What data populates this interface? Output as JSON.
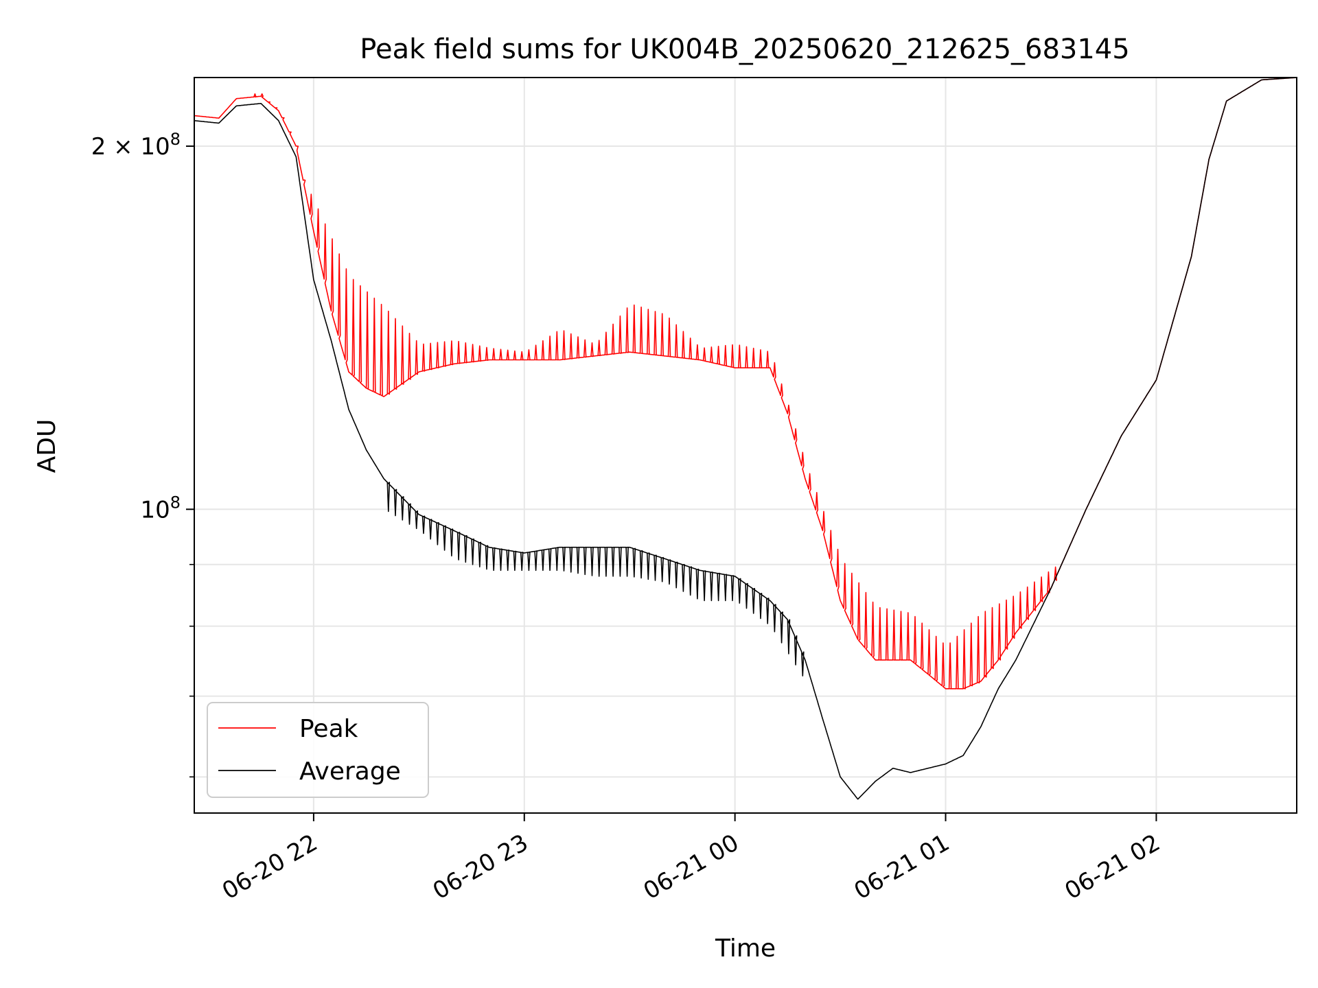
{
  "chart_data": {
    "type": "line",
    "title": "Peak field sums for UK004B_20250620_212625_683145",
    "xlabel": "Time",
    "ylabel": "ADU",
    "yscale": "log",
    "grid": true,
    "legend_position": "lower-left",
    "xlim": [
      "2025-06-20 21:26",
      "2025-06-21 02:40"
    ],
    "ylim": [
      56000000,
      228000000
    ],
    "x_ticks": [
      {
        "value": "2025-06-20 22:00",
        "label": "06-20 22"
      },
      {
        "value": "2025-06-20 23:00",
        "label": "06-20 23"
      },
      {
        "value": "2025-06-21 00:00",
        "label": "06-21 00"
      },
      {
        "value": "2025-06-21 01:00",
        "label": "06-21 01"
      },
      {
        "value": "2025-06-21 02:00",
        "label": "06-21 02"
      }
    ],
    "y_major_ticks": [
      {
        "value": 100000000,
        "label_base": "10",
        "label_exp": "8",
        "label_coef": ""
      },
      {
        "value": 200000000,
        "label_base": "10",
        "label_exp": "8",
        "label_coef": "2 × "
      }
    ],
    "y_minor_ticks": [
      60000000,
      70000000,
      80000000,
      90000000
    ],
    "series": [
      {
        "name": "Peak",
        "color": "#ff0000",
        "x": [
          "2025-06-20 21:26",
          "2025-06-20 21:33",
          "2025-06-20 21:38",
          "2025-06-20 21:45",
          "2025-06-20 21:50",
          "2025-06-20 21:55",
          "2025-06-20 22:00",
          "2025-06-20 22:05",
          "2025-06-20 22:10",
          "2025-06-20 22:15",
          "2025-06-20 22:20",
          "2025-06-20 22:30",
          "2025-06-20 22:40",
          "2025-06-20 22:50",
          "2025-06-20 23:00",
          "2025-06-20 23:10",
          "2025-06-20 23:20",
          "2025-06-20 23:30",
          "2025-06-20 23:40",
          "2025-06-20 23:50",
          "2025-06-21 00:00",
          "2025-06-21 00:10",
          "2025-06-21 00:15",
          "2025-06-21 00:20",
          "2025-06-21 00:25",
          "2025-06-21 00:30",
          "2025-06-21 00:35",
          "2025-06-21 00:40",
          "2025-06-21 00:45",
          "2025-06-21 00:50",
          "2025-06-21 00:55",
          "2025-06-21 01:00",
          "2025-06-21 01:05",
          "2025-06-21 01:10",
          "2025-06-21 01:15",
          "2025-06-21 01:20",
          "2025-06-21 01:30",
          "2025-06-21 01:40",
          "2025-06-21 01:50",
          "2025-06-21 02:00",
          "2025-06-21 02:10",
          "2025-06-21 02:15",
          "2025-06-21 02:20",
          "2025-06-21 02:30",
          "2025-06-21 02:40"
        ],
        "y": [
          212000000,
          211000000,
          219000000,
          220000000,
          214000000,
          200000000,
          170000000,
          146000000,
          130000000,
          126000000,
          124000000,
          130000000,
          132000000,
          133000000,
          133000000,
          133000000,
          134000000,
          135000000,
          134000000,
          133000000,
          131000000,
          131000000,
          120000000,
          106000000,
          96000000,
          84000000,
          78000000,
          75000000,
          75000000,
          75000000,
          73000000,
          71000000,
          71000000,
          72000000,
          75000000,
          79000000,
          86000000,
          100000000,
          115000000,
          128000000,
          162000000,
          195000000,
          218000000,
          227000000,
          228000000
        ]
      },
      {
        "name": "Average",
        "color": "#000000",
        "x": [
          "2025-06-20 21:26",
          "2025-06-20 21:33",
          "2025-06-20 21:38",
          "2025-06-20 21:45",
          "2025-06-20 21:50",
          "2025-06-20 21:55",
          "2025-06-20 22:00",
          "2025-06-20 22:05",
          "2025-06-20 22:10",
          "2025-06-20 22:15",
          "2025-06-20 22:20",
          "2025-06-20 22:30",
          "2025-06-20 22:40",
          "2025-06-20 22:50",
          "2025-06-20 23:00",
          "2025-06-20 23:10",
          "2025-06-20 23:20",
          "2025-06-20 23:30",
          "2025-06-20 23:40",
          "2025-06-20 23:50",
          "2025-06-21 00:00",
          "2025-06-21 00:10",
          "2025-06-21 00:15",
          "2025-06-21 00:20",
          "2025-06-21 00:25",
          "2025-06-21 00:30",
          "2025-06-21 00:35",
          "2025-06-21 00:40",
          "2025-06-21 00:45",
          "2025-06-21 00:50",
          "2025-06-21 00:55",
          "2025-06-21 01:00",
          "2025-06-21 01:05",
          "2025-06-21 01:10",
          "2025-06-21 01:15",
          "2025-06-21 01:20",
          "2025-06-21 01:30",
          "2025-06-21 01:40",
          "2025-06-21 01:50",
          "2025-06-21 02:00",
          "2025-06-21 02:10",
          "2025-06-21 02:15",
          "2025-06-21 02:20",
          "2025-06-21 02:30",
          "2025-06-21 02:40"
        ],
        "y": [
          210000000,
          209000000,
          216000000,
          217000000,
          210000000,
          196000000,
          155000000,
          138000000,
          121000000,
          112000000,
          106000000,
          99000000,
          96000000,
          93000000,
          92000000,
          93000000,
          93000000,
          93000000,
          91000000,
          89000000,
          88000000,
          84000000,
          81000000,
          75000000,
          67000000,
          60000000,
          57500000,
          59500000,
          61000000,
          60500000,
          61000000,
          61500000,
          62500000,
          66000000,
          71000000,
          75000000,
          86000000,
          100000000,
          115000000,
          128000000,
          162000000,
          195000000,
          218000000,
          227000000,
          228000000
        ]
      }
    ],
    "spikes": {
      "series": "Peak",
      "start": "2025-06-20 21:43",
      "end": "2025-06-21 01:32",
      "interval_minutes": 2,
      "peak_values": [
        [
          "2025-06-20 21:45",
          221000000
        ],
        [
          "2025-06-20 22:00",
          180000000
        ],
        [
          "2025-06-20 22:10",
          156000000
        ],
        [
          "2025-06-20 22:20",
          147000000
        ],
        [
          "2025-06-20 22:30",
          137000000
        ],
        [
          "2025-06-20 22:40",
          138000000
        ],
        [
          "2025-06-20 22:50",
          136000000
        ],
        [
          "2025-06-20 23:00",
          135000000
        ],
        [
          "2025-06-20 23:10",
          141000000
        ],
        [
          "2025-06-20 23:20",
          137000000
        ],
        [
          "2025-06-20 23:30",
          148000000
        ],
        [
          "2025-06-20 23:40",
          145000000
        ],
        [
          "2025-06-20 23:50",
          136000000
        ],
        [
          "2025-06-21 00:00",
          137000000
        ],
        [
          "2025-06-21 00:10",
          135000000
        ],
        [
          "2025-06-21 00:15",
          122000000
        ],
        [
          "2025-06-21 00:20",
          109000000
        ],
        [
          "2025-06-21 00:30",
          91000000
        ],
        [
          "2025-06-21 00:40",
          83000000
        ],
        [
          "2025-06-21 00:50",
          82000000
        ],
        [
          "2025-06-21 01:00",
          77000000
        ],
        [
          "2025-06-21 01:10",
          82000000
        ],
        [
          "2025-06-21 01:20",
          85000000
        ],
        [
          "2025-06-21 01:32",
          90000000
        ]
      ]
    },
    "troughs": {
      "series": "Average",
      "peak_values": [
        [
          "2025-06-20 22:20",
          100000000
        ],
        [
          "2025-06-20 22:30",
          96000000
        ],
        [
          "2025-06-20 22:40",
          91000000
        ],
        [
          "2025-06-20 22:50",
          89000000
        ],
        [
          "2025-06-20 23:00",
          89000000
        ],
        [
          "2025-06-20 23:10",
          89000000
        ],
        [
          "2025-06-20 23:20",
          88000000
        ],
        [
          "2025-06-20 23:30",
          88000000
        ],
        [
          "2025-06-20 23:40",
          87000000
        ],
        [
          "2025-06-20 23:50",
          84000000
        ],
        [
          "2025-06-21 00:00",
          84000000
        ],
        [
          "2025-06-21 00:10",
          80000000
        ],
        [
          "2025-06-21 00:20",
          72000000
        ]
      ]
    }
  }
}
